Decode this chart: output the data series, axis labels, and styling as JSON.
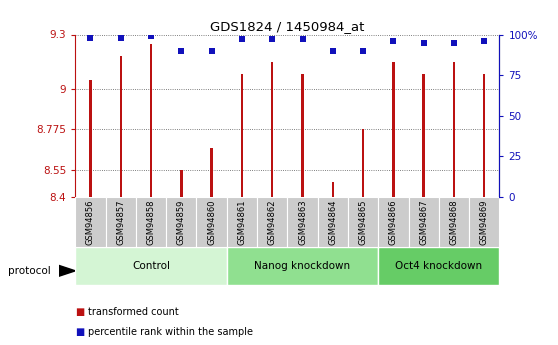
{
  "title": "GDS1824 / 1450984_at",
  "samples": [
    "GSM94856",
    "GSM94857",
    "GSM94858",
    "GSM94859",
    "GSM94860",
    "GSM94861",
    "GSM94862",
    "GSM94863",
    "GSM94864",
    "GSM94865",
    "GSM94866",
    "GSM94867",
    "GSM94868",
    "GSM94869"
  ],
  "transformed_count": [
    9.05,
    9.18,
    9.25,
    8.55,
    8.67,
    9.08,
    9.15,
    9.08,
    8.48,
    8.775,
    9.15,
    9.08,
    9.15,
    9.08
  ],
  "percentile_rank": [
    98,
    98,
    99,
    90,
    90,
    97,
    97,
    97,
    90,
    90,
    96,
    95,
    95,
    96
  ],
  "groups": [
    {
      "label": "Control",
      "start": 0,
      "end": 5,
      "color": "#d4f5d4"
    },
    {
      "label": "Nanog knockdown",
      "start": 5,
      "end": 10,
      "color": "#90e090"
    },
    {
      "label": "Oct4 knockdown",
      "start": 10,
      "end": 14,
      "color": "#66cc66"
    }
  ],
  "ylim_left": [
    8.4,
    9.3
  ],
  "ylim_right": [
    0,
    100
  ],
  "yticks_left": [
    8.4,
    8.55,
    8.775,
    9.0,
    9.3
  ],
  "ytick_labels_left": [
    "8.4",
    "8.55",
    "8.775",
    "9",
    "9.3"
  ],
  "yticks_right": [
    0,
    25,
    50,
    75,
    100
  ],
  "ytick_labels_right": [
    "0",
    "25",
    "50",
    "75",
    "100%"
  ],
  "bar_color": "#bb1111",
  "dot_color": "#1111bb",
  "grid_color": "#555555",
  "bar_width": 0.08,
  "legend_items": [
    {
      "label": "transformed count",
      "color": "#bb1111"
    },
    {
      "label": "percentile rank within the sample",
      "color": "#1111bb"
    }
  ],
  "protocol_label": "protocol",
  "tick_bg_color": "#cccccc"
}
